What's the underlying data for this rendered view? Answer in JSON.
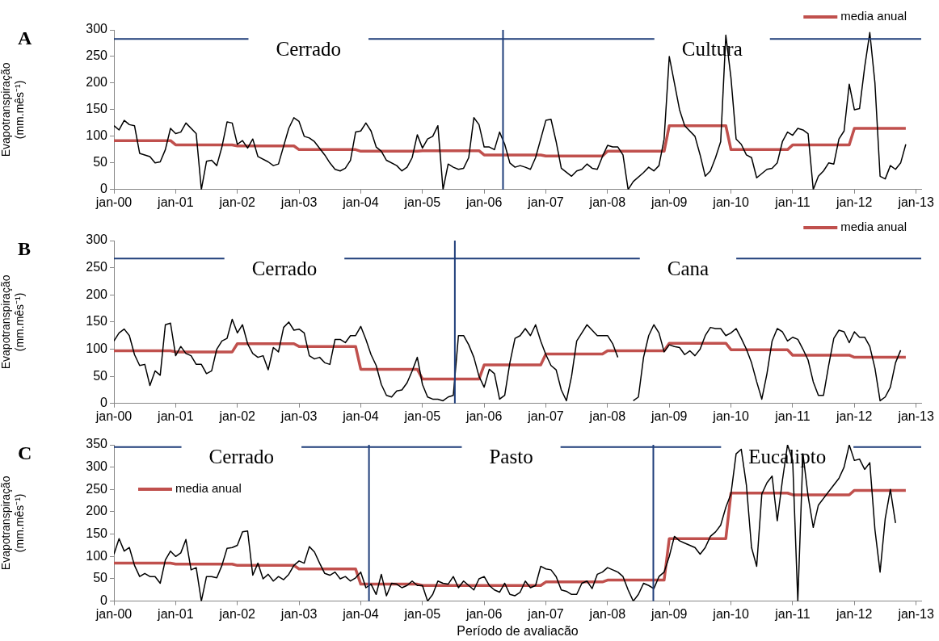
{
  "chart_data": [
    {
      "type": "line",
      "title": "A",
      "ylabel": "Evapotranspiração\n(mm.mês⁻¹)",
      "xlim": [
        "2000-01",
        "2013-02"
      ],
      "ylim": [
        0,
        300
      ],
      "yticks": [
        0,
        50,
        100,
        150,
        200,
        250,
        300
      ],
      "xticks": [
        {
          "value": "2000-01",
          "label": "jan-00"
        },
        {
          "value": "2001-01",
          "label": "jan-01"
        },
        {
          "value": "2002-01",
          "label": "jan-02"
        },
        {
          "value": "2003-01",
          "label": "jan-03"
        },
        {
          "value": "2004-01",
          "label": "jan-04"
        },
        {
          "value": "2005-01",
          "label": "jan-05"
        },
        {
          "value": "2006-01",
          "label": "jan-06"
        },
        {
          "value": "2007-01",
          "label": "jan-07"
        },
        {
          "value": "2008-01",
          "label": "jan-08"
        },
        {
          "value": "2009-01",
          "label": "jan-09"
        },
        {
          "value": "2010-01",
          "label": "jan-10"
        },
        {
          "value": "2011-01",
          "label": "jan-11"
        },
        {
          "value": "2012-01",
          "label": "jan-12"
        },
        {
          "value": "2013-01",
          "label": "jan-13"
        }
      ],
      "grid": false,
      "legend": "top right",
      "series": [
        {
          "color": "#000000",
          "x": [
            "2000-01",
            "2000-02",
            "2000-03",
            "2000-04",
            "2000-05",
            "2000-06",
            "2000-08",
            "2000-09",
            "2000-10",
            "2000-11",
            "2000-12",
            "2001-01",
            "2001-02",
            "2001-03",
            "2001-05",
            "2001-06",
            "2001-07",
            "2001-08",
            "2001-09",
            "2001-10",
            "2001-11",
            "2001-12",
            "2002-01",
            "2002-02",
            "2002-03",
            "2002-04",
            "2002-05",
            "2002-07",
            "2002-08",
            "2002-09",
            "2002-11",
            "2002-12",
            "2003-01",
            "2003-02",
            "2003-03",
            "2003-04",
            "2003-06",
            "2003-07",
            "2003-08",
            "2003-09",
            "2003-10",
            "2003-11",
            "2003-12",
            "2004-01",
            "2004-02",
            "2004-03",
            "2004-04",
            "2004-05",
            "2004-06",
            "2004-08",
            "2004-09",
            "2004-10",
            "2004-11",
            "2004-12",
            "2005-01",
            "2005-02",
            "2005-03",
            "2005-04",
            "2005-05",
            "2005-06",
            "2005-07",
            "2005-08",
            "2005-09",
            "2005-10",
            "2005-11",
            "2005-12",
            "2006-01",
            "2006-02",
            "2006-03",
            "2006-04",
            "2006-05",
            "2006-06",
            "2006-07",
            "2006-08",
            "2006-09",
            "2006-10",
            "2006-11",
            "2007-01",
            "2007-02",
            "2007-03",
            "2007-04",
            "2007-06",
            "2007-07",
            "2007-08",
            "2007-09",
            "2007-10",
            "2007-11",
            "2007-12",
            "2008-01",
            "2008-02",
            "2008-03",
            "2008-04",
            "2008-05",
            "2008-06",
            "2008-08",
            "2008-09",
            "2008-10",
            "2008-11",
            "2008-12",
            "2009-01",
            "2009-02",
            "2009-03",
            "2009-04",
            "2009-06",
            "2009-07",
            "2009-08",
            "2009-09",
            "2009-10",
            "2009-11",
            "2009-12",
            "2010-01",
            "2010-02",
            "2010-03",
            "2010-04",
            "2010-05",
            "2010-06",
            "2010-07",
            "2010-08",
            "2010-09",
            "2010-10",
            "2010-11",
            "2010-12",
            "2011-01",
            "2011-02",
            "2011-03",
            "2011-04",
            "2011-05",
            "2011-06",
            "2011-07",
            "2011-08",
            "2011-09",
            "2011-10",
            "2011-11",
            "2011-12",
            "2012-01",
            "2012-02",
            "2012-03",
            "2012-04",
            "2012-05",
            "2012-06",
            "2012-07",
            "2012-08",
            "2012-09",
            "2012-10",
            "2012-11"
          ],
          "values": [
            120,
            112,
            130,
            122,
            120,
            68,
            62,
            50,
            52,
            75,
            115,
            105,
            108,
            125,
            105,
            0,
            53,
            55,
            45,
            80,
            127,
            125,
            85,
            92,
            78,
            95,
            62,
            52,
            45,
            48,
            115,
            135,
            128,
            100,
            97,
            90,
            65,
            50,
            38,
            35,
            40,
            55,
            108,
            110,
            125,
            110,
            80,
            72,
            55,
            45,
            35,
            42,
            60,
            103,
            78,
            95,
            100,
            120,
            0,
            48,
            42,
            38,
            40,
            60,
            135,
            122,
            80,
            80,
            75,
            108,
            85,
            50,
            42,
            45,
            42,
            38,
            60,
            130,
            132,
            90,
            40,
            25,
            35,
            38,
            48,
            40,
            38,
            62,
            83,
            80,
            80,
            65,
            0,
            15,
            32,
            42,
            35,
            45,
            95,
            250,
            200,
            150,
            120,
            100,
            65,
            25,
            35,
            60,
            90,
            290,
            210,
            95,
            85,
            65,
            60,
            22,
            30,
            38,
            40,
            50,
            90,
            108,
            102,
            115,
            112,
            105,
            0,
            25,
            35,
            50,
            48,
            95,
            110,
            198,
            150,
            152,
            230,
            295,
            200,
            25,
            20,
            45,
            38,
            50,
            85
          ]
        },
        {
          "name": "media anual",
          "color": "#c0504d",
          "x": [
            "2000-01",
            "2000-12",
            "2001-01",
            "2001-12",
            "2002-01",
            "2002-12",
            "2003-01",
            "2003-12",
            "2004-01",
            "2004-12",
            "2005-01",
            "2005-12",
            "2006-01",
            "2006-12",
            "2007-01",
            "2007-12",
            "2008-01",
            "2008-12",
            "2009-01",
            "2009-12",
            "2010-01",
            "2010-12",
            "2011-01",
            "2011-12",
            "2012-01",
            "2012-11"
          ],
          "values": [
            92,
            92,
            84,
            84,
            82,
            82,
            75,
            75,
            72,
            72,
            73,
            73,
            65,
            65,
            63,
            63,
            72,
            72,
            120,
            120,
            75,
            75,
            84,
            84,
            115,
            115
          ]
        }
      ],
      "ref_lines": [
        {
          "axis": "x",
          "value": "2006-04-21",
          "color": "#1f3e7a"
        },
        {
          "axis": "y",
          "value": 283,
          "color": "#1f3e7a"
        }
      ],
      "annotations": [
        "Cerrado",
        "Cultura"
      ]
    },
    {
      "type": "line",
      "title": "B",
      "ylabel": "Evapotranspiração\n(mm.mês⁻¹)",
      "xlim": [
        "2000-01",
        "2013-02"
      ],
      "ylim": [
        0,
        300
      ],
      "yticks": [
        0,
        50,
        100,
        150,
        200,
        250,
        300
      ],
      "xticks": [
        {
          "value": "2000-01",
          "label": "jan-00"
        },
        {
          "value": "2001-01",
          "label": "jan-01"
        },
        {
          "value": "2002-01",
          "label": "jan-02"
        },
        {
          "value": "2003-01",
          "label": "jan-03"
        },
        {
          "value": "2004-01",
          "label": "jan-04"
        },
        {
          "value": "2005-01",
          "label": "jan-05"
        },
        {
          "value": "2006-01",
          "label": "jan-06"
        },
        {
          "value": "2007-01",
          "label": "jan-07"
        },
        {
          "value": "2008-01",
          "label": "jan-08"
        },
        {
          "value": "2009-01",
          "label": "jan-09"
        },
        {
          "value": "2010-01",
          "label": "jan-10"
        },
        {
          "value": "2011-01",
          "label": "jan-11"
        },
        {
          "value": "2012-01",
          "label": "jan-12"
        },
        {
          "value": "2013-01",
          "label": "jan-13"
        }
      ],
      "grid": false,
      "legend": "top right",
      "series": [
        {
          "color": "#000000",
          "x": [
            "2000-01",
            "2000-02",
            "2000-03",
            "2000-04",
            "2000-05",
            "2000-06",
            "2000-07",
            "2000-08",
            "2000-09",
            "2000-10",
            "2000-11",
            "2000-12",
            "2001-01",
            "2001-02",
            "2001-03",
            "2001-04",
            "2001-05",
            "2001-06",
            "2001-07",
            "2001-08",
            "2001-09",
            "2001-10",
            "2001-11",
            "2001-12",
            "2002-01",
            "2002-02",
            "2002-03",
            "2002-04",
            "2002-05",
            "2002-06",
            "2002-07",
            "2002-08",
            "2002-09",
            "2002-10",
            "2002-11",
            "2002-12",
            "2003-01",
            "2003-02",
            "2003-03",
            "2003-04",
            "2003-05",
            "2003-06",
            "2003-07",
            "2003-08",
            "2003-09",
            "2003-10",
            "2003-11",
            "2003-12",
            "2004-01",
            "2004-02",
            "2004-03",
            "2004-04",
            "2004-05",
            "2004-06",
            "2004-07",
            "2004-08",
            "2004-09",
            "2004-10",
            "2004-11",
            "2004-12",
            "2005-01",
            "2005-02",
            "2005-03",
            "2005-04",
            "2005-05",
            "2005-06",
            "2005-07",
            "2005-08",
            "2005-09",
            "2005-10",
            "2005-11",
            "2005-12",
            "2006-01",
            "2006-02",
            "2006-03",
            "2006-04",
            "2006-05",
            "2006-06",
            "2006-07",
            "2006-08",
            "2006-09",
            "2006-10",
            "2006-11",
            "2006-12",
            "2007-01",
            "2007-02",
            "2007-03",
            "2007-04",
            "2007-05",
            "2007-06",
            "2007-07",
            "2007-08",
            "2007-09",
            "2007-10",
            "2007-11",
            "2007-12",
            "2008-01",
            "2008-02",
            "2008-03",
            "2008-04",
            "2008-05",
            "2008-06",
            "2008-07",
            "2008-08",
            "2008-09",
            "2008-10",
            "2008-11",
            "2008-12",
            "2009-01",
            "2009-02",
            "2009-03",
            "2009-04",
            "2009-05",
            "2009-06",
            "2009-07",
            "2009-08",
            "2009-09",
            "2009-10",
            "2009-11",
            "2009-12",
            "2010-01",
            "2010-02",
            "2010-03",
            "2010-04",
            "2010-05",
            "2010-06",
            "2010-07",
            "2010-08",
            "2010-09",
            "2010-10",
            "2010-11",
            "2010-12",
            "2011-01",
            "2011-02",
            "2011-03",
            "2011-04",
            "2011-05",
            "2011-06",
            "2011-07",
            "2011-08",
            "2011-09",
            "2011-10",
            "2011-11",
            "2011-12",
            "2012-01",
            "2012-02",
            "2012-03",
            "2012-04",
            "2012-05",
            "2012-06",
            "2012-07",
            "2012-08",
            "2012-09",
            "2012-10"
          ],
          "values": [
            115,
            130,
            137,
            125,
            90,
            70,
            72,
            33,
            60,
            52,
            145,
            148,
            88,
            105,
            92,
            88,
            72,
            72,
            55,
            60,
            100,
            115,
            120,
            155,
            130,
            145,
            110,
            92,
            85,
            88,
            62,
            103,
            95,
            140,
            150,
            135,
            137,
            130,
            88,
            82,
            85,
            75,
            72,
            118,
            118,
            112,
            125,
            125,
            142,
            118,
            90,
            70,
            35,
            15,
            12,
            23,
            25,
            38,
            60,
            85,
            35,
            12,
            8,
            8,
            5,
            12,
            15,
            125,
            125,
            108,
            85,
            50,
            30,
            63,
            55,
            8,
            15,
            75,
            120,
            125,
            138,
            125,
            145,
            115,
            90,
            70,
            62,
            25,
            5,
            50,
            115,
            130,
            145,
            135,
            125,
            125,
            125,
            110,
            85,
            null,
            null,
            5,
            12,
            85,
            125,
            145,
            130,
            95,
            108,
            105,
            103,
            90,
            97,
            88,
            100,
            125,
            140,
            138,
            138,
            125,
            130,
            138,
            120,
            100,
            75,
            40,
            8,
            55,
            115,
            138,
            132,
            115,
            122,
            118,
            100,
            80,
            40,
            15,
            15,
            70,
            120,
            135,
            132,
            112,
            132,
            122,
            122,
            105,
            65,
            5,
            12,
            30,
            75,
            98
          ]
        },
        {
          "name": "media anual",
          "color": "#c0504d",
          "x": [
            "2000-01",
            "2000-12",
            "2001-01",
            "2001-12",
            "2002-01",
            "2002-12",
            "2003-01",
            "2003-12",
            "2004-01",
            "2004-12",
            "2005-01",
            "2005-12",
            "2006-01",
            "2006-12",
            "2007-01",
            "2007-12",
            "2008-01",
            "2008-12",
            "2009-01",
            "2009-12",
            "2010-01",
            "2010-12",
            "2011-01",
            "2011-12",
            "2012-01",
            "2012-11"
          ],
          "values": [
            97,
            97,
            95,
            95,
            110,
            110,
            105,
            105,
            63,
            63,
            45,
            45,
            71,
            71,
            91,
            91,
            97,
            97,
            111,
            111,
            99,
            99,
            89,
            89,
            85,
            85
          ]
        }
      ],
      "ref_lines": [
        {
          "axis": "x",
          "value": "2005-07-10",
          "color": "#1f3e7a"
        },
        {
          "axis": "y",
          "value": 267,
          "color": "#1f3e7a"
        }
      ],
      "annotations": [
        "Cerrado",
        "Cana"
      ]
    },
    {
      "type": "line",
      "title": "C",
      "xlabel": "Período de avaliacão",
      "ylabel": "Evapotranspiração\n(mm.mês⁻¹)",
      "xlim": [
        "2000-01",
        "2013-02"
      ],
      "ylim": [
        0,
        350
      ],
      "yticks": [
        0,
        50,
        100,
        150,
        200,
        250,
        300,
        350
      ],
      "xticks": [
        {
          "value": "2000-01",
          "label": "jan-00"
        },
        {
          "value": "2001-01",
          "label": "jan-01"
        },
        {
          "value": "2002-01",
          "label": "jan-02"
        },
        {
          "value": "2003-01",
          "label": "jan-03"
        },
        {
          "value": "2004-01",
          "label": "jan-04"
        },
        {
          "value": "2005-01",
          "label": "jan-05"
        },
        {
          "value": "2006-01",
          "label": "jan-06"
        },
        {
          "value": "2007-01",
          "label": "jan-07"
        },
        {
          "value": "2008-01",
          "label": "jan-08"
        },
        {
          "value": "2009-01",
          "label": "jan-09"
        },
        {
          "value": "2010-01",
          "label": "jan-10"
        },
        {
          "value": "2011-01",
          "label": "jan-11"
        },
        {
          "value": "2012-01",
          "label": "jan-12"
        },
        {
          "value": "2013-01",
          "label": "jan-13"
        }
      ],
      "grid": false,
      "legend": "top left",
      "series": [
        {
          "color": "#000000",
          "x": [
            "2000-01",
            "2000-02",
            "2000-03",
            "2000-04",
            "2000-05",
            "2000-06",
            "2000-07",
            "2000-08",
            "2000-09",
            "2000-10",
            "2000-11",
            "2000-12",
            "2001-01",
            "2001-02",
            "2001-03",
            "2001-04",
            "2001-05",
            "2001-06",
            "2001-07",
            "2001-08",
            "2001-09",
            "2001-10",
            "2001-11",
            "2001-12",
            "2002-01",
            "2002-02",
            "2002-03",
            "2002-04",
            "2002-05",
            "2002-06",
            "2002-07",
            "2002-08",
            "2002-09",
            "2002-10",
            "2002-11",
            "2002-12",
            "2003-01",
            "2003-02",
            "2003-03",
            "2003-04",
            "2003-05",
            "2003-06",
            "2003-07",
            "2003-08",
            "2003-09",
            "2003-10",
            "2003-11",
            "2003-12",
            "2004-01",
            "2004-02",
            "2004-03",
            "2004-04",
            "2004-05",
            "2004-06",
            "2004-07",
            "2004-08",
            "2004-09",
            "2004-10",
            "2004-11",
            "2004-12",
            "2005-01",
            "2005-02",
            "2005-03",
            "2005-04",
            "2005-05",
            "2005-06",
            "2005-07",
            "2005-08",
            "2005-09",
            "2005-10",
            "2005-11",
            "2005-12",
            "2006-01",
            "2006-02",
            "2006-03",
            "2006-04",
            "2006-05",
            "2006-06",
            "2006-07",
            "2006-08",
            "2006-09",
            "2006-10",
            "2006-11",
            "2006-12",
            "2007-01",
            "2007-02",
            "2007-03",
            "2007-04",
            "2007-05",
            "2007-06",
            "2007-07",
            "2007-08",
            "2007-09",
            "2007-10",
            "2007-11",
            "2007-12",
            "2008-01",
            "2008-02",
            "2008-03",
            "2008-04",
            "2008-05",
            "2008-06",
            "2008-07",
            "2008-08",
            "2008-09",
            "2008-10",
            "2008-11",
            "2008-12",
            "2009-01",
            "2009-02",
            "2009-03",
            "2009-04",
            "2009-05",
            "2009-06",
            "2009-07",
            "2009-08",
            "2009-09",
            "2009-10",
            "2009-11",
            "2009-12",
            "2010-01",
            "2010-02",
            "2010-03",
            "2010-04",
            "2010-05",
            "2010-06",
            "2010-07",
            "2010-08",
            "2010-09",
            "2010-10",
            "2010-11",
            "2010-12",
            "2011-01",
            "2011-02",
            "2011-03",
            "2011-04",
            "2011-05",
            "2011-06",
            "2011-07",
            "2011-08",
            "2011-09",
            "2011-10",
            "2011-11",
            "2011-12",
            "2012-01",
            "2012-02",
            "2012-03",
            "2012-04",
            "2012-05",
            "2012-06",
            "2012-07",
            "2012-08",
            "2012-09"
          ],
          "values": [
            105,
            140,
            112,
            120,
            80,
            55,
            62,
            55,
            55,
            40,
            92,
            112,
            100,
            108,
            138,
            70,
            75,
            0,
            55,
            55,
            52,
            80,
            118,
            120,
            125,
            155,
            157,
            58,
            85,
            50,
            60,
            45,
            55,
            48,
            60,
            80,
            90,
            85,
            122,
            110,
            85,
            62,
            58,
            65,
            50,
            55,
            45,
            52,
            65,
            30,
            38,
            15,
            60,
            12,
            40,
            38,
            30,
            35,
            45,
            35,
            35,
            0,
            15,
            45,
            40,
            38,
            55,
            30,
            45,
            35,
            25,
            50,
            55,
            35,
            25,
            20,
            40,
            15,
            12,
            20,
            45,
            30,
            35,
            78,
            72,
            70,
            55,
            25,
            22,
            15,
            15,
            40,
            45,
            28,
            60,
            65,
            75,
            70,
            65,
            55,
            25,
            0,
            15,
            40,
            35,
            28,
            55,
            65,
            100,
            145,
            135,
            130,
            125,
            120,
            105,
            120,
            145,
            155,
            170,
            210,
            240,
            330,
            340,
            260,
            120,
            78,
            240,
            265,
            280,
            180,
            270,
            350,
            315,
            0,
            330,
            235,
            165,
            215,
            230,
            245,
            260,
            275,
            300,
            350,
            315,
            318,
            295,
            310,
            160,
            65,
            185,
            250,
            175
          ]
        },
        {
          "name": "media anual",
          "color": "#c0504d",
          "x": [
            "2000-01",
            "2000-12",
            "2001-01",
            "2001-12",
            "2002-01",
            "2002-12",
            "2003-01",
            "2003-12",
            "2004-01",
            "2004-12",
            "2005-01",
            "2005-12",
            "2006-01",
            "2006-12",
            "2007-01",
            "2007-12",
            "2008-01",
            "2008-12",
            "2009-01",
            "2009-12",
            "2010-01",
            "2010-12",
            "2011-01",
            "2011-12",
            "2012-01",
            "2012-11"
          ],
          "values": [
            85,
            85,
            83,
            83,
            80,
            80,
            72,
            72,
            38,
            38,
            35,
            35,
            35,
            35,
            43,
            43,
            47,
            47,
            140,
            140,
            242,
            242,
            238,
            238,
            248,
            248
          ]
        }
      ],
      "ref_lines": [
        {
          "axis": "x",
          "value": "2004-02-19",
          "color": "#1f3e7a"
        },
        {
          "axis": "x",
          "value": "2008-09-28",
          "color": "#1f3e7a"
        },
        {
          "axis": "y",
          "value": 345,
          "color": "#1f3e7a"
        }
      ],
      "annotations": [
        "Cerrado",
        "Pasto",
        "Eucalipto"
      ]
    }
  ]
}
